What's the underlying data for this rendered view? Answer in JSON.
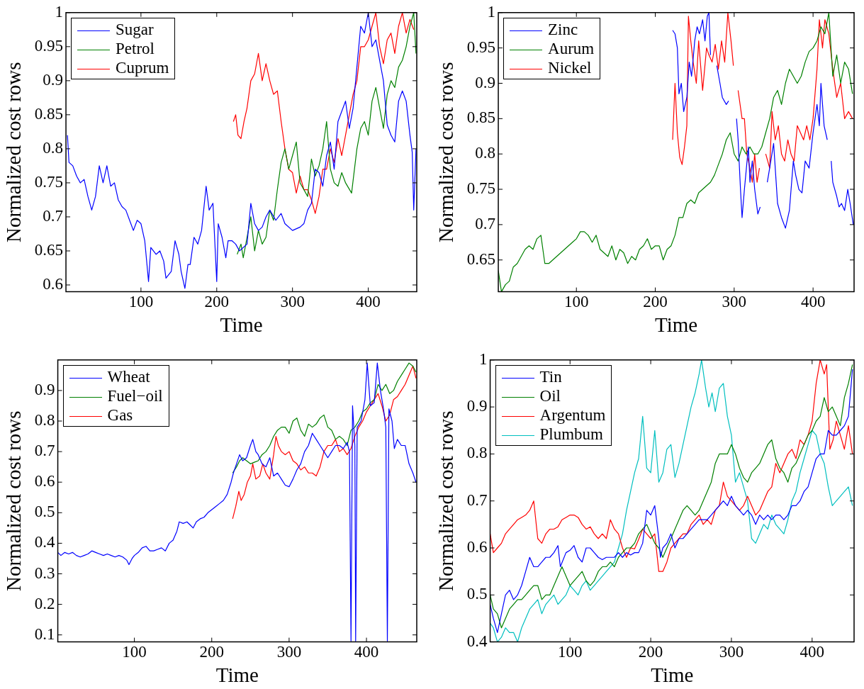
{
  "chart_data": [
    {
      "type": "line",
      "xlabel": "Time",
      "ylabel": "Normalized cost rows",
      "xlim": [
        1,
        464
      ],
      "xticks": [
        100,
        200,
        300,
        400
      ],
      "ylim": [
        0.59,
        1
      ],
      "yticks": [
        0.6,
        0.65,
        0.7,
        0.75,
        0.8,
        0.85,
        0.9,
        0.95,
        1
      ],
      "legend": "top left",
      "series": [
        {
          "name": "Sugar",
          "color": "#0000ff",
          "x": [
            3,
            5,
            10,
            15,
            20,
            25,
            30,
            35,
            40,
            45,
            50,
            55,
            60,
            65,
            70,
            75,
            80,
            85,
            90,
            95,
            100,
            105,
            110,
            113,
            120,
            125,
            130,
            133,
            140,
            145,
            150,
            153,
            158,
            162,
            165,
            170,
            175,
            180,
            186,
            190,
            195,
            200,
            202,
            207,
            212,
            215,
            220,
            225,
            230,
            240,
            245,
            250,
            255,
            260,
            265,
            270,
            278,
            285,
            290,
            300,
            310,
            315,
            320,
            325,
            330,
            335,
            340,
            345,
            350,
            355,
            360,
            365,
            370,
            375,
            380,
            385,
            390,
            395,
            400,
            405,
            410,
            415,
            420,
            425,
            430,
            435,
            440,
            445,
            450,
            455,
            458,
            460,
            463
          ],
          "values": [
            0.82,
            0.78,
            0.775,
            0.76,
            0.75,
            0.755,
            0.73,
            0.71,
            0.73,
            0.775,
            0.75,
            0.775,
            0.745,
            0.75,
            0.725,
            0.715,
            0.71,
            0.695,
            0.68,
            0.695,
            0.69,
            0.665,
            0.605,
            0.655,
            0.645,
            0.65,
            0.635,
            0.61,
            0.62,
            0.665,
            0.645,
            0.62,
            0.595,
            0.63,
            0.63,
            0.67,
            0.66,
            0.68,
            0.745,
            0.71,
            0.72,
            0.605,
            0.69,
            0.67,
            0.64,
            0.665,
            0.665,
            0.66,
            0.65,
            0.66,
            0.72,
            0.69,
            0.68,
            0.685,
            0.7,
            0.71,
            0.695,
            0.705,
            0.69,
            0.68,
            0.685,
            0.69,
            0.71,
            0.72,
            0.77,
            0.765,
            0.745,
            0.79,
            0.81,
            0.77,
            0.84,
            0.855,
            0.87,
            0.83,
            0.86,
            0.92,
            0.98,
            0.97,
            1.0,
            0.95,
            0.96,
            0.93,
            0.9,
            0.835,
            0.82,
            0.81,
            0.87,
            0.885,
            0.87,
            0.82,
            0.795,
            0.71,
            0.8
          ]
        },
        {
          "name": "Petrol",
          "color": "#008000",
          "x": [
            227,
            232,
            235,
            240,
            245,
            250,
            255,
            260,
            265,
            270,
            275,
            280,
            285,
            290,
            295,
            300,
            305,
            310,
            315,
            320,
            325,
            330,
            335,
            340,
            345,
            350,
            355,
            360,
            365,
            370,
            378,
            385,
            390,
            395,
            400,
            405,
            410,
            415,
            420,
            425,
            430,
            435,
            440,
            445,
            450,
            455,
            460,
            463
          ],
          "values": [
            0.645,
            0.66,
            0.64,
            0.67,
            0.7,
            0.65,
            0.68,
            0.66,
            0.67,
            0.71,
            0.695,
            0.74,
            0.78,
            0.8,
            0.77,
            0.79,
            0.81,
            0.75,
            0.74,
            0.73,
            0.785,
            0.76,
            0.775,
            0.8,
            0.84,
            0.77,
            0.75,
            0.745,
            0.765,
            0.75,
            0.735,
            0.8,
            0.83,
            0.84,
            0.82,
            0.87,
            0.89,
            0.86,
            0.83,
            0.88,
            0.9,
            0.89,
            0.92,
            0.93,
            0.95,
            0.98,
            1.0,
            0.94
          ]
        },
        {
          "name": "Cuprum",
          "color": "#ff0000",
          "x": [
            222,
            225,
            228,
            232,
            236,
            240,
            245,
            250,
            255,
            260,
            265,
            270,
            275,
            280,
            285,
            290,
            295,
            300,
            305,
            310,
            315,
            320,
            325,
            330,
            335,
            340,
            345,
            350,
            355,
            360,
            365,
            370,
            375,
            380,
            385,
            390,
            395,
            400,
            405,
            410,
            415,
            420,
            425,
            430,
            435,
            440,
            445,
            450,
            455,
            460
          ],
          "values": [
            0.84,
            0.85,
            0.82,
            0.815,
            0.84,
            0.86,
            0.9,
            0.91,
            0.94,
            0.9,
            0.925,
            0.9,
            0.88,
            0.885,
            0.84,
            0.8,
            0.77,
            0.765,
            0.735,
            0.76,
            0.74,
            0.74,
            0.725,
            0.705,
            0.73,
            0.77,
            0.77,
            0.8,
            0.78,
            0.815,
            0.79,
            0.82,
            0.85,
            0.88,
            0.9,
            0.95,
            0.95,
            0.96,
            0.98,
            1.0,
            0.95,
            0.925,
            0.96,
            0.97,
            0.94,
            0.98,
            1.0,
            0.97,
            0.99,
            0.975
          ]
        }
      ]
    },
    {
      "type": "line",
      "xlabel": "Time",
      "ylabel": "Normalized cost rows",
      "xlim": [
        1,
        452
      ],
      "xticks": [
        100,
        200,
        300,
        400
      ],
      "ylim": [
        0.605,
        1
      ],
      "yticks": [
        0.65,
        0.7,
        0.75,
        0.8,
        0.85,
        0.9,
        0.95,
        1
      ],
      "legend": "top left",
      "series": [
        {
          "name": "Zinc",
          "color": "#0000ff",
          "x": [
            222,
            225,
            228,
            230,
            233,
            236,
            240,
            243,
            246,
            250,
            253,
            256,
            260,
            263,
            266,
            268,
            270,
            275,
            278,
            282,
            285,
            290,
            293,
            300,
            303,
            305,
            308,
            310,
            313,
            318,
            320,
            323,
            326,
            330,
            333,
            338,
            342,
            345,
            350,
            355,
            360,
            365,
            370,
            375,
            378,
            382,
            386,
            390,
            395,
            400,
            405,
            408,
            410,
            414,
            418,
            420,
            423,
            425,
            430,
            433,
            436,
            440,
            444,
            447,
            451
          ],
          "values": [
            0.975,
            0.97,
            0.95,
            0.885,
            0.9,
            0.86,
            0.88,
            0.93,
            0.91,
            0.96,
            0.98,
            0.97,
            0.99,
            0.96,
            0.995,
            1.0,
            0.94,
            null,
            0.925,
            0.9,
            0.88,
            0.87,
            0.875,
            null,
            0.85,
            0.82,
            0.75,
            0.71,
            0.75,
            0.81,
            0.76,
            0.79,
            0.75,
            0.715,
            0.725,
            null,
            0.76,
            0.78,
            0.815,
            0.73,
            0.71,
            0.695,
            0.72,
            0.79,
            0.77,
            0.75,
            0.745,
            0.79,
            0.78,
            0.83,
            0.87,
            0.84,
            0.9,
            0.84,
            0.82,
            null,
            0.79,
            0.76,
            0.74,
            0.725,
            0.73,
            0.72,
            0.75,
            0.73,
            0.7
          ]
        },
        {
          "name": "Aurum",
          "color": "#008000",
          "x": [
            1,
            5,
            10,
            15,
            20,
            25,
            30,
            35,
            40,
            45,
            50,
            55,
            60,
            65,
            70,
            75,
            80,
            85,
            90,
            95,
            100,
            105,
            110,
            115,
            120,
            125,
            130,
            135,
            140,
            145,
            150,
            155,
            160,
            165,
            170,
            175,
            180,
            185,
            190,
            195,
            200,
            205,
            210,
            215,
            220,
            225,
            230,
            235,
            240,
            245,
            250,
            255,
            260,
            265,
            270,
            275,
            280,
            285,
            290,
            295,
            300,
            305,
            310,
            315,
            320,
            325,
            330,
            335,
            340,
            345,
            350,
            355,
            360,
            365,
            370,
            375,
            380,
            385,
            390,
            395,
            400,
            405,
            410,
            415,
            420,
            425,
            430,
            435,
            440,
            445,
            450
          ],
          "values": [
            0.635,
            0.605,
            0.615,
            0.62,
            0.64,
            0.645,
            0.655,
            0.665,
            0.67,
            0.665,
            0.68,
            0.685,
            0.645,
            0.645,
            0.65,
            0.655,
            0.66,
            0.665,
            0.67,
            0.675,
            0.68,
            0.69,
            0.69,
            0.685,
            0.675,
            0.685,
            0.665,
            0.66,
            0.655,
            0.67,
            0.65,
            0.665,
            0.66,
            0.645,
            0.655,
            0.65,
            0.665,
            0.67,
            0.68,
            0.665,
            0.67,
            0.67,
            0.65,
            0.665,
            0.67,
            0.685,
            0.71,
            0.71,
            0.73,
            0.735,
            0.73,
            0.745,
            0.75,
            0.755,
            0.76,
            0.77,
            0.785,
            0.8,
            0.82,
            0.83,
            0.8,
            0.79,
            0.81,
            0.8,
            0.81,
            0.8,
            0.8,
            0.81,
            0.83,
            0.85,
            0.88,
            0.89,
            0.87,
            0.9,
            0.92,
            0.91,
            0.9,
            0.91,
            0.93,
            0.945,
            0.95,
            0.96,
            0.98,
            0.97,
            1.0,
            0.91,
            0.94,
            0.9,
            0.93,
            0.92,
            0.885
          ]
        },
        {
          "name": "Nickel",
          "color": "#ff0000",
          "x": [
            222,
            225,
            228,
            231,
            234,
            237,
            240,
            242,
            245,
            248,
            252,
            255,
            260,
            265,
            268,
            272,
            276,
            280,
            284,
            288,
            292,
            296,
            299,
            302,
            305,
            310,
            313,
            316,
            320,
            323,
            326,
            329,
            332,
            336,
            340,
            345,
            348,
            352,
            356,
            360,
            364,
            368,
            372,
            376,
            380,
            384,
            388,
            392,
            396,
            400,
            405,
            408,
            412,
            415,
            420,
            425,
            430,
            435,
            440,
            445,
            450
          ],
          "values": [
            0.82,
            0.9,
            0.83,
            0.795,
            0.785,
            0.81,
            0.84,
            0.995,
            0.96,
            0.93,
            0.9,
            0.96,
            0.89,
            0.95,
            0.94,
            0.93,
            0.955,
            0.92,
            0.96,
            0.93,
            1.0,
            0.96,
            0.925,
            null,
            0.89,
            0.85,
            0.85,
            0.8,
            0.78,
            0.76,
            0.8,
            0.76,
            0.78,
            null,
            0.8,
            0.78,
            0.86,
            0.82,
            0.84,
            0.8,
            0.79,
            0.82,
            0.8,
            0.79,
            0.84,
            0.83,
            0.82,
            0.84,
            0.82,
            0.85,
            0.92,
            0.99,
            0.95,
            0.99,
            0.97,
            0.92,
            0.88,
            0.9,
            0.85,
            0.86,
            0.85
          ]
        }
      ]
    },
    {
      "type": "line",
      "xlabel": "Time",
      "ylabel": "Normalized cost rows",
      "xlim": [
        1,
        465
      ],
      "xticks": [
        100,
        200,
        300,
        400
      ],
      "ylim": [
        0.077,
        1
      ],
      "yticks": [
        0.1,
        0.2,
        0.3,
        0.4,
        0.5,
        0.6,
        0.7,
        0.8,
        0.9
      ],
      "legend": "top left",
      "series": [
        {
          "name": "Wheat",
          "color": "#0000ff",
          "x": [
            1,
            5,
            10,
            15,
            20,
            25,
            30,
            35,
            40,
            45,
            50,
            55,
            60,
            65,
            70,
            75,
            80,
            85,
            90,
            93,
            97,
            100,
            105,
            110,
            115,
            120,
            125,
            130,
            135,
            140,
            145,
            150,
            155,
            158,
            163,
            168,
            172,
            176,
            180,
            185,
            190,
            195,
            200,
            205,
            210,
            215,
            220,
            225,
            228,
            232,
            236,
            240,
            245,
            250,
            253,
            257,
            260,
            265,
            270,
            275,
            280,
            285,
            290,
            295,
            300,
            305,
            310,
            315,
            320,
            325,
            330,
            335,
            340,
            345,
            350,
            355,
            360,
            365,
            370,
            375,
            378,
            380,
            382,
            385,
            386,
            388,
            393,
            398,
            401,
            405,
            410,
            414,
            418,
            422,
            425,
            427,
            429,
            433,
            436,
            440,
            445,
            450,
            455,
            460,
            464
          ],
          "values": [
            0.37,
            0.36,
            0.37,
            0.365,
            0.37,
            0.36,
            0.355,
            0.36,
            0.365,
            0.375,
            0.37,
            0.365,
            0.36,
            0.365,
            0.36,
            0.355,
            0.36,
            0.355,
            0.345,
            0.33,
            0.35,
            0.36,
            0.37,
            0.385,
            0.39,
            0.375,
            0.375,
            0.38,
            0.385,
            0.375,
            0.4,
            0.41,
            0.44,
            0.47,
            0.465,
            0.47,
            0.46,
            0.45,
            0.47,
            0.48,
            0.485,
            0.5,
            0.51,
            0.52,
            0.53,
            0.54,
            0.56,
            0.6,
            0.63,
            0.66,
            0.69,
            0.67,
            0.68,
            0.72,
            0.74,
            0.7,
            0.69,
            0.66,
            0.65,
            0.68,
            0.62,
            0.63,
            0.61,
            0.59,
            0.585,
            0.61,
            0.64,
            0.66,
            0.7,
            0.72,
            0.76,
            0.74,
            0.72,
            0.7,
            0.68,
            0.7,
            0.72,
            0.72,
            0.71,
            0.73,
            0.7,
            0.08,
            0.85,
            0.72,
            0.08,
            0.78,
            0.8,
            0.87,
            0.99,
            0.85,
            0.86,
            0.99,
            0.9,
            0.84,
            0.78,
            0.08,
            0.84,
            0.8,
            0.71,
            0.74,
            0.72,
            0.72,
            0.66,
            0.63,
            0.6
          ]
        },
        {
          "name": "Fuel−oil",
          "color": "#008000",
          "x": [
            227,
            232,
            236,
            240,
            245,
            250,
            255,
            260,
            265,
            270,
            275,
            280,
            285,
            290,
            295,
            300,
            305,
            310,
            315,
            320,
            325,
            330,
            335,
            340,
            345,
            350,
            355,
            360,
            365,
            370,
            375,
            380,
            385,
            390,
            395,
            400,
            405,
            410,
            415,
            420,
            425,
            430,
            435,
            440,
            445,
            450,
            455,
            460,
            464
          ],
          "values": [
            0.63,
            0.65,
            0.67,
            0.68,
            0.67,
            0.66,
            0.665,
            0.67,
            0.69,
            0.7,
            0.72,
            0.75,
            0.77,
            0.78,
            0.78,
            0.76,
            0.8,
            0.81,
            0.77,
            0.75,
            0.79,
            0.78,
            0.79,
            0.81,
            0.82,
            0.78,
            0.77,
            0.74,
            0.75,
            0.74,
            0.72,
            0.77,
            0.78,
            0.8,
            0.83,
            0.84,
            0.86,
            0.87,
            0.92,
            0.9,
            0.92,
            0.89,
            0.9,
            0.93,
            0.95,
            0.97,
            0.99,
            0.98,
            0.96
          ]
        },
        {
          "name": "Gas",
          "color": "#ff0000",
          "x": [
            227,
            231,
            235,
            238,
            242,
            246,
            250,
            253,
            257,
            262,
            266,
            270,
            275,
            280,
            283,
            286,
            290,
            295,
            300,
            305,
            310,
            315,
            320,
            325,
            330,
            335,
            340,
            345,
            350,
            355,
            360,
            365,
            370,
            375,
            380,
            385,
            390,
            395,
            400,
            405,
            410,
            415,
            420,
            425,
            430,
            435,
            440,
            445,
            450,
            455,
            460,
            464
          ],
          "values": [
            0.48,
            0.52,
            0.57,
            0.54,
            0.56,
            0.6,
            0.62,
            0.66,
            0.61,
            0.62,
            0.66,
            0.63,
            0.61,
            0.69,
            0.75,
            0.72,
            0.7,
            0.69,
            0.7,
            0.67,
            0.66,
            0.64,
            0.65,
            0.63,
            0.63,
            0.62,
            0.65,
            0.7,
            0.72,
            0.72,
            0.74,
            0.7,
            0.71,
            0.69,
            0.71,
            0.75,
            0.78,
            0.8,
            0.83,
            0.85,
            0.87,
            0.89,
            0.85,
            0.8,
            0.82,
            0.87,
            0.88,
            0.9,
            0.92,
            0.95,
            0.98,
            0.94
          ]
        }
      ]
    },
    {
      "type": "line",
      "xlabel": "Time",
      "ylabel": "Normalized cost rows",
      "xlim": [
        1,
        452
      ],
      "xticks": [
        100,
        200,
        300,
        400
      ],
      "ylim": [
        0.4,
        1
      ],
      "yticks": [
        0.4,
        0.5,
        0.6,
        0.7,
        0.8,
        0.9,
        1
      ],
      "legend": "top left",
      "series": [
        {
          "name": "Tin",
          "color": "#0000ff",
          "x": [
            1,
            5,
            10,
            15,
            20,
            25,
            30,
            35,
            40,
            45,
            50,
            55,
            60,
            65,
            70,
            75,
            80,
            85,
            88,
            95,
            100,
            105,
            110,
            115,
            120,
            125,
            130,
            135,
            140,
            145,
            150,
            155,
            160,
            165,
            170,
            175,
            180,
            185,
            190,
            195,
            200,
            205,
            210,
            212,
            215,
            220,
            225,
            230,
            235,
            240,
            245,
            250,
            255,
            260,
            265,
            270,
            275,
            280,
            285,
            290,
            295,
            300,
            305,
            310,
            315,
            320,
            325,
            330,
            335,
            340,
            345,
            350,
            355,
            360,
            365,
            370,
            375,
            380,
            385,
            390,
            395,
            400,
            405,
            410,
            415,
            420,
            425,
            430,
            435,
            440,
            445,
            450
          ],
          "values": [
            0.48,
            0.45,
            0.42,
            0.46,
            0.5,
            0.51,
            0.49,
            0.5,
            0.52,
            0.55,
            0.58,
            0.56,
            0.56,
            0.57,
            0.58,
            0.58,
            0.59,
            0.605,
            0.56,
            0.59,
            0.595,
            0.605,
            0.58,
            0.57,
            0.6,
            0.6,
            0.59,
            0.58,
            0.575,
            0.58,
            0.58,
            0.58,
            0.59,
            0.58,
            0.59,
            0.585,
            0.59,
            0.59,
            0.61,
            0.68,
            0.67,
            0.69,
            0.62,
            0.58,
            0.6,
            0.61,
            0.63,
            0.6,
            0.62,
            0.62,
            0.63,
            0.64,
            0.65,
            0.66,
            0.66,
            0.66,
            0.67,
            0.68,
            0.69,
            0.7,
            0.69,
            0.71,
            0.69,
            0.68,
            0.67,
            0.68,
            0.67,
            0.65,
            0.67,
            0.66,
            0.67,
            0.66,
            0.67,
            0.67,
            0.66,
            0.67,
            0.69,
            0.69,
            0.7,
            0.72,
            0.73,
            0.76,
            0.79,
            0.8,
            0.8,
            0.85,
            0.84,
            0.84,
            0.85,
            0.86,
            0.88,
            0.98
          ]
        },
        {
          "name": "Oil",
          "color": "#008000",
          "x": [
            1,
            5,
            10,
            15,
            20,
            25,
            30,
            35,
            40,
            45,
            50,
            55,
            60,
            65,
            70,
            75,
            80,
            85,
            90,
            95,
            100,
            105,
            110,
            115,
            120,
            125,
            130,
            135,
            140,
            145,
            150,
            155,
            160,
            165,
            170,
            175,
            180,
            185,
            190,
            195,
            200,
            205,
            210,
            215,
            220,
            225,
            230,
            235,
            240,
            245,
            250,
            255,
            260,
            265,
            270,
            275,
            280,
            285,
            290,
            295,
            300,
            305,
            310,
            315,
            320,
            325,
            330,
            335,
            340,
            345,
            350,
            355,
            360,
            365,
            370,
            375,
            380,
            385,
            390,
            395,
            400,
            405,
            410,
            415,
            420,
            425,
            430,
            435,
            440,
            445,
            450
          ],
          "values": [
            0.5,
            0.47,
            0.46,
            0.43,
            0.45,
            0.47,
            0.48,
            0.49,
            0.49,
            0.5,
            0.51,
            0.52,
            0.52,
            0.49,
            0.5,
            0.5,
            0.52,
            0.54,
            0.56,
            0.54,
            0.52,
            0.53,
            0.54,
            0.55,
            0.53,
            0.52,
            0.53,
            0.55,
            0.56,
            0.56,
            0.57,
            0.56,
            0.58,
            0.59,
            0.6,
            0.6,
            0.61,
            0.63,
            0.64,
            0.65,
            0.63,
            0.61,
            0.6,
            0.58,
            0.6,
            0.62,
            0.64,
            0.66,
            0.68,
            0.69,
            0.68,
            0.67,
            0.68,
            0.7,
            0.72,
            0.74,
            0.78,
            0.8,
            0.8,
            0.8,
            0.82,
            0.8,
            0.77,
            0.75,
            0.74,
            0.76,
            0.77,
            0.78,
            0.8,
            0.82,
            0.83,
            0.79,
            0.77,
            0.76,
            0.74,
            0.77,
            0.78,
            0.8,
            0.82,
            0.84,
            0.85,
            0.87,
            0.88,
            0.92,
            0.89,
            0.9,
            0.88,
            0.86,
            0.92,
            0.95,
            0.99
          ]
        },
        {
          "name": "Argentum",
          "color": "#ff0000",
          "x": [
            1,
            5,
            10,
            15,
            20,
            25,
            30,
            35,
            40,
            45,
            50,
            55,
            60,
            65,
            70,
            75,
            80,
            85,
            90,
            95,
            100,
            105,
            110,
            115,
            120,
            125,
            130,
            135,
            140,
            145,
            150,
            155,
            160,
            165,
            170,
            175,
            180,
            185,
            190,
            195,
            200,
            205,
            210,
            215,
            220,
            225,
            230,
            235,
            240,
            245,
            250,
            255,
            260,
            265,
            270,
            275,
            280,
            285,
            290,
            295,
            300,
            305,
            310,
            315,
            320,
            325,
            330,
            335,
            340,
            345,
            350,
            355,
            360,
            365,
            370,
            375,
            380,
            385,
            390,
            395,
            400,
            405,
            410,
            415,
            418,
            422,
            426,
            430,
            435,
            440,
            445,
            450
          ],
          "values": [
            0.63,
            0.59,
            0.6,
            0.61,
            0.63,
            0.64,
            0.65,
            0.66,
            0.665,
            0.67,
            0.68,
            0.7,
            0.62,
            0.61,
            0.63,
            0.64,
            0.64,
            0.645,
            0.66,
            0.665,
            0.67,
            0.67,
            0.665,
            0.65,
            0.64,
            0.645,
            0.63,
            0.62,
            0.63,
            0.62,
            0.66,
            0.64,
            0.63,
            0.6,
            0.58,
            0.6,
            0.598,
            0.618,
            0.64,
            0.63,
            0.62,
            0.63,
            0.55,
            0.55,
            0.57,
            0.6,
            0.61,
            0.62,
            0.63,
            0.63,
            0.65,
            0.66,
            0.67,
            0.65,
            0.66,
            0.65,
            0.68,
            0.69,
            0.74,
            0.71,
            0.7,
            0.69,
            0.68,
            0.69,
            0.71,
            0.69,
            0.67,
            0.68,
            0.7,
            0.72,
            0.73,
            0.78,
            0.76,
            0.78,
            0.8,
            0.81,
            0.79,
            0.83,
            0.82,
            0.84,
            0.87,
            0.95,
            1.0,
            0.97,
            0.99,
            0.81,
            0.83,
            0.87,
            0.84,
            0.81,
            0.86,
            0.8
          ]
        },
        {
          "name": "Plumbum",
          "color": "#00bfbf",
          "x": [
            1,
            5,
            10,
            15,
            20,
            25,
            30,
            35,
            40,
            45,
            50,
            55,
            60,
            65,
            70,
            75,
            80,
            85,
            90,
            95,
            100,
            105,
            110,
            115,
            120,
            125,
            130,
            135,
            140,
            145,
            150,
            155,
            160,
            165,
            170,
            175,
            180,
            185,
            190,
            195,
            200,
            205,
            210,
            215,
            220,
            225,
            230,
            235,
            240,
            245,
            250,
            255,
            260,
            263,
            268,
            272,
            276,
            280,
            285,
            290,
            295,
            300,
            305,
            310,
            315,
            320,
            325,
            330,
            335,
            340,
            345,
            350,
            355,
            360,
            365,
            370,
            375,
            380,
            385,
            390,
            395,
            400,
            405,
            410,
            415,
            420,
            425,
            430,
            435,
            440,
            445,
            450
          ],
          "values": [
            0.44,
            0.43,
            0.4,
            0.41,
            0.43,
            0.42,
            0.42,
            0.4,
            0.43,
            0.45,
            0.47,
            0.48,
            0.49,
            0.46,
            0.48,
            0.49,
            0.5,
            0.48,
            0.49,
            0.5,
            0.52,
            0.51,
            0.5,
            0.52,
            0.53,
            0.51,
            0.52,
            0.53,
            0.54,
            0.55,
            0.56,
            0.57,
            0.6,
            0.63,
            0.68,
            0.72,
            0.76,
            0.79,
            0.88,
            0.77,
            0.76,
            0.85,
            0.74,
            0.76,
            0.81,
            0.82,
            0.75,
            0.78,
            0.82,
            0.86,
            0.9,
            0.93,
            0.97,
            1.0,
            0.94,
            0.9,
            0.93,
            0.89,
            0.94,
            0.95,
            0.88,
            0.84,
            0.74,
            0.76,
            0.73,
            0.7,
            0.62,
            0.61,
            0.63,
            0.65,
            0.64,
            0.67,
            0.65,
            0.64,
            0.63,
            0.66,
            0.7,
            0.72,
            0.76,
            0.79,
            0.82,
            0.85,
            0.84,
            0.8,
            0.78,
            0.73,
            0.69,
            0.7,
            0.71,
            0.72,
            0.73,
            0.69
          ]
        }
      ]
    }
  ]
}
